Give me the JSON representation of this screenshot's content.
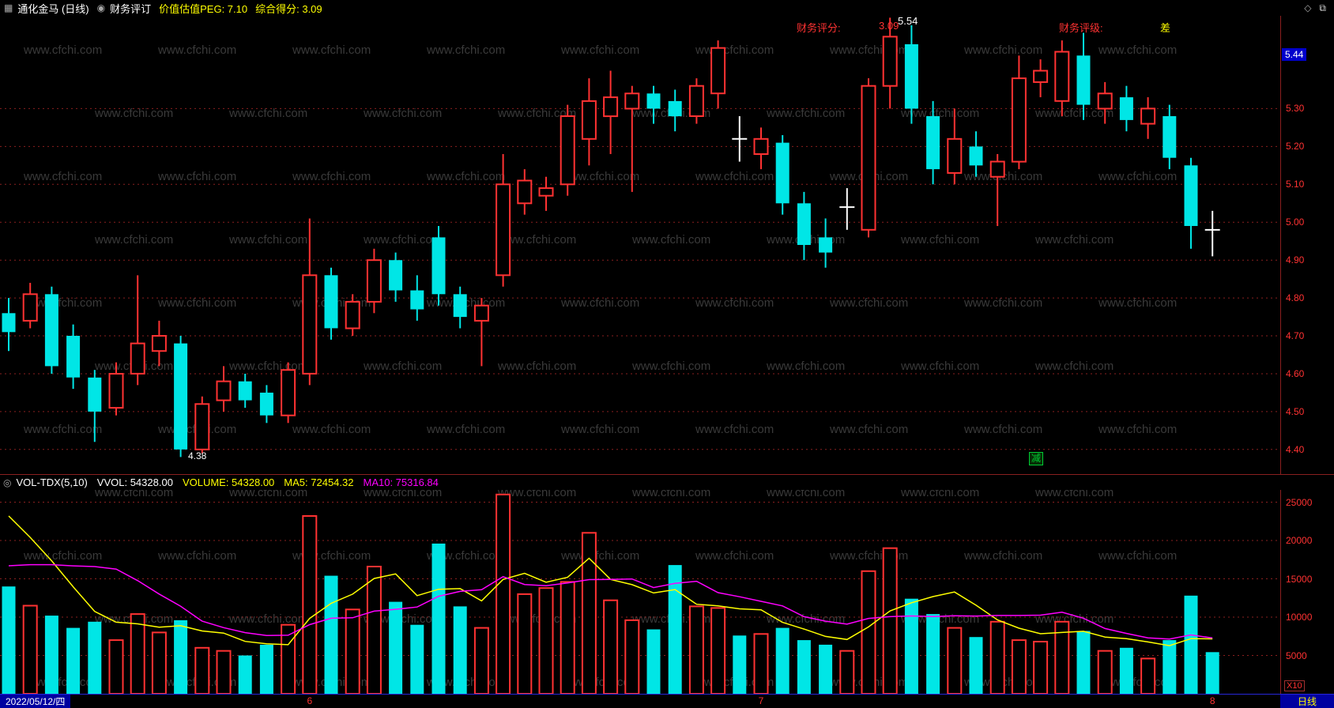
{
  "colors": {
    "up": "#ff3232",
    "down": "#00e6e6",
    "doji": "#ffffff",
    "grid": "#8a1f1f",
    "ma5": "#ffff00",
    "ma10": "#ff00ff",
    "accent_red": "#ff3232",
    "accent_yellow": "#ffff00",
    "highlight_blue": "#0000cc",
    "panel_blue": "#0000a0",
    "badge_green": "#00cc33",
    "bottom_blue": "#2626d8",
    "watermark": "#3a3a3a"
  },
  "icons": {
    "app": "▦",
    "review": "◉",
    "diamond": "◇",
    "window": "⧉",
    "indicator": "◎"
  },
  "top_bar": {
    "title": "通化金马 (日线)",
    "review_label": "财务评订",
    "peg": "价值估值PEG: 7.10",
    "score": "综合得分: 3.09"
  },
  "overlays": {
    "fin_score_label": "财务评分:",
    "fin_score_value": "3.09",
    "high_label": "5.54",
    "fin_grade_label": "财务评级:",
    "fin_grade_value": "差",
    "low_label": "4.38",
    "event_badge": "减"
  },
  "indicator_header": {
    "name": "VOL-TDX(5,10)",
    "vvol": "VVOL: 54328.00",
    "volume": "VOLUME: 54328.00",
    "ma5": "MA5: 72454.32",
    "ma10": "MA10: 75316.84"
  },
  "bottom_bar": {
    "date": "2022/05/12/四",
    "period": "日线",
    "months": [
      {
        "label": "6",
        "index": 14
      },
      {
        "label": "7",
        "index": 35
      },
      {
        "label": "8",
        "index": 56
      }
    ]
  },
  "watermark": "www.cfchi.com",
  "chart_data": [
    {
      "type": "candlestick",
      "pane": "price",
      "ylim": [
        4.335,
        5.545
      ],
      "yticks": [
        4.4,
        4.5,
        4.6,
        4.7,
        4.8,
        4.9,
        5.0,
        5.1,
        5.2,
        5.3
      ],
      "highlight_tick": 5.44,
      "grid": true,
      "high_marker": {
        "index": 41,
        "price": 5.54
      },
      "low_marker": {
        "index": 8,
        "price": 4.38
      },
      "candles": [
        [
          4.76,
          4.8,
          4.66,
          4.71
        ],
        [
          4.74,
          4.84,
          4.72,
          4.81
        ],
        [
          4.81,
          4.83,
          4.6,
          4.62
        ],
        [
          4.7,
          4.73,
          4.56,
          4.59
        ],
        [
          4.59,
          4.61,
          4.42,
          4.5
        ],
        [
          4.51,
          4.63,
          4.49,
          4.6
        ],
        [
          4.6,
          4.86,
          4.57,
          4.68
        ],
        [
          4.66,
          4.74,
          4.62,
          4.7
        ],
        [
          4.68,
          4.7,
          4.38,
          4.4
        ],
        [
          4.4,
          4.54,
          4.39,
          4.52
        ],
        [
          4.53,
          4.62,
          4.5,
          4.58
        ],
        [
          4.58,
          4.6,
          4.51,
          4.53
        ],
        [
          4.55,
          4.57,
          4.47,
          4.49
        ],
        [
          4.49,
          4.63,
          4.47,
          4.61
        ],
        [
          4.6,
          5.01,
          4.57,
          4.86
        ],
        [
          4.86,
          4.88,
          4.69,
          4.72
        ],
        [
          4.72,
          4.81,
          4.7,
          4.79
        ],
        [
          4.79,
          4.93,
          4.76,
          4.9
        ],
        [
          4.9,
          4.92,
          4.79,
          4.82
        ],
        [
          4.82,
          4.86,
          4.74,
          4.77
        ],
        [
          4.96,
          4.99,
          4.78,
          4.81
        ],
        [
          4.81,
          4.83,
          4.72,
          4.75
        ],
        [
          4.74,
          4.8,
          4.62,
          4.78
        ],
        [
          4.86,
          5.18,
          4.83,
          5.1
        ],
        [
          5.05,
          5.14,
          5.02,
          5.11
        ],
        [
          5.07,
          5.12,
          5.03,
          5.09
        ],
        [
          5.1,
          5.31,
          5.07,
          5.28
        ],
        [
          5.22,
          5.38,
          5.15,
          5.32
        ],
        [
          5.28,
          5.4,
          5.18,
          5.33
        ],
        [
          5.3,
          5.36,
          5.08,
          5.34
        ],
        [
          5.34,
          5.36,
          5.26,
          5.3
        ],
        [
          5.32,
          5.35,
          5.24,
          5.28
        ],
        [
          5.28,
          5.38,
          5.26,
          5.36
        ],
        [
          5.34,
          5.48,
          5.3,
          5.46
        ],
        [
          5.22,
          5.28,
          5.16,
          5.22
        ],
        [
          5.18,
          5.25,
          5.14,
          5.22
        ],
        [
          5.21,
          5.23,
          5.02,
          5.05
        ],
        [
          5.05,
          5.08,
          4.9,
          4.94
        ],
        [
          4.96,
          5.01,
          4.88,
          4.92
        ],
        [
          5.04,
          5.09,
          4.98,
          5.04
        ],
        [
          4.98,
          5.38,
          4.96,
          5.36
        ],
        [
          5.36,
          5.54,
          5.3,
          5.49
        ],
        [
          5.47,
          5.52,
          5.26,
          5.3
        ],
        [
          5.28,
          5.32,
          5.1,
          5.14
        ],
        [
          5.13,
          5.3,
          5.1,
          5.22
        ],
        [
          5.2,
          5.24,
          5.12,
          5.15
        ],
        [
          5.12,
          5.18,
          4.99,
          5.16
        ],
        [
          5.16,
          5.44,
          5.14,
          5.38
        ],
        [
          5.37,
          5.43,
          5.33,
          5.4
        ],
        [
          5.32,
          5.48,
          5.28,
          5.45
        ],
        [
          5.44,
          5.5,
          5.27,
          5.31
        ],
        [
          5.3,
          5.37,
          5.26,
          5.34
        ],
        [
          5.33,
          5.36,
          5.24,
          5.27
        ],
        [
          5.26,
          5.33,
          5.22,
          5.3
        ],
        [
          5.28,
          5.31,
          5.14,
          5.17
        ],
        [
          5.15,
          5.17,
          4.93,
          4.99
        ],
        [
          4.98,
          5.03,
          4.91,
          4.98
        ]
      ]
    },
    {
      "type": "bar",
      "pane": "volume",
      "ylim": [
        0,
        26600
      ],
      "yticks": [
        25000,
        20000,
        15000,
        10000,
        5000
      ],
      "unit": "X10",
      "grid": true,
      "values": [
        14000,
        11500,
        10200,
        8600,
        9400,
        7000,
        10400,
        8000,
        9600,
        6000,
        5600,
        5000,
        6400,
        9000,
        23200,
        15400,
        11000,
        16600,
        12000,
        9000,
        19600,
        11400,
        8600,
        26000,
        13000,
        13800,
        14600,
        21000,
        12200,
        9600,
        8400,
        16800,
        11400,
        11200,
        7600,
        7800,
        8600,
        7000,
        6400,
        5600,
        16000,
        19000,
        12400,
        10400,
        8600,
        7400,
        9400,
        7000,
        6800,
        9400,
        8200,
        5600,
        6000,
        4600,
        7000,
        12800,
        5433
      ],
      "ma_seed": [
        10000,
        10000,
        10200,
        10200,
        10300,
        10300,
        25500,
        25500,
        25500,
        25500
      ],
      "series": [
        {
          "name": "MA5",
          "window": 5
        },
        {
          "name": "MA10",
          "window": 10
        }
      ]
    }
  ]
}
